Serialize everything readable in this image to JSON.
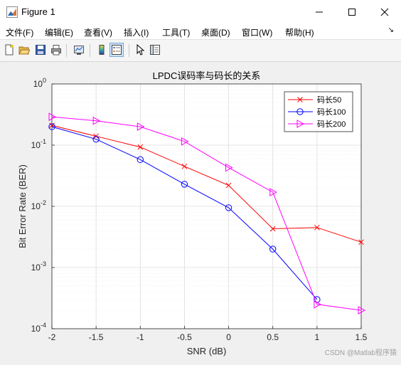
{
  "window": {
    "title": "Figure 1",
    "icon": "matlab-icon"
  },
  "menu": [
    "文件(F)",
    "编辑(E)",
    "查看(V)",
    "插入(I)",
    "工具(T)",
    "桌面(D)",
    "窗口(W)",
    "帮助(H)"
  ],
  "toolbar": [
    "new-figure-icon",
    "open-icon",
    "save-icon",
    "print-icon",
    "link-plot-icon",
    "colorbar-icon",
    "legend-icon",
    "pointer-icon",
    "property-inspector-icon"
  ],
  "watermark": "CSDN @Matlab程序猿",
  "colors": {
    "series1": "#ff0000",
    "series2": "#0000ff",
    "series3": "#ff00ff",
    "grid": "#d9d9d9"
  },
  "chart_data": {
    "type": "line",
    "title": "LPDC误码率与码长的关系",
    "xlabel": "SNR (dB)",
    "ylabel": "Bit Error Rate (BER)",
    "xlim": [
      -2,
      1.5
    ],
    "ylim": [
      0.0001,
      1
    ],
    "yscale": "log",
    "grid": true,
    "legend_position": "top-right",
    "x": [
      -2,
      -1.5,
      -1,
      -0.5,
      0,
      0.5,
      1,
      1.5
    ],
    "xticks": [
      "-2",
      "-1.5",
      "-1",
      "-0.5",
      "0",
      "0.5",
      "1",
      "1.5"
    ],
    "yticks": [
      {
        "v": 0.0001,
        "base": "10",
        "exp": "-4"
      },
      {
        "v": 0.001,
        "base": "10",
        "exp": "-3"
      },
      {
        "v": 0.01,
        "base": "10",
        "exp": "-2"
      },
      {
        "v": 0.1,
        "base": "10",
        "exp": "-1"
      },
      {
        "v": 1,
        "base": "10",
        "exp": "0"
      }
    ],
    "series": [
      {
        "name": "码长50",
        "marker": "x",
        "color": "#ff0000",
        "values": [
          0.21,
          0.14,
          0.093,
          0.045,
          0.022,
          0.0043,
          0.0045,
          0.0026
        ]
      },
      {
        "name": "码长100",
        "marker": "o",
        "color": "#0000ff",
        "values": [
          0.2,
          0.125,
          0.058,
          0.023,
          0.0095,
          0.002,
          0.0003,
          null
        ]
      },
      {
        "name": "码长200",
        "marker": "triangle-right",
        "color": "#ff00ff",
        "values": [
          0.29,
          0.25,
          0.2,
          0.115,
          0.043,
          0.017,
          0.00025,
          0.0002
        ]
      }
    ]
  }
}
